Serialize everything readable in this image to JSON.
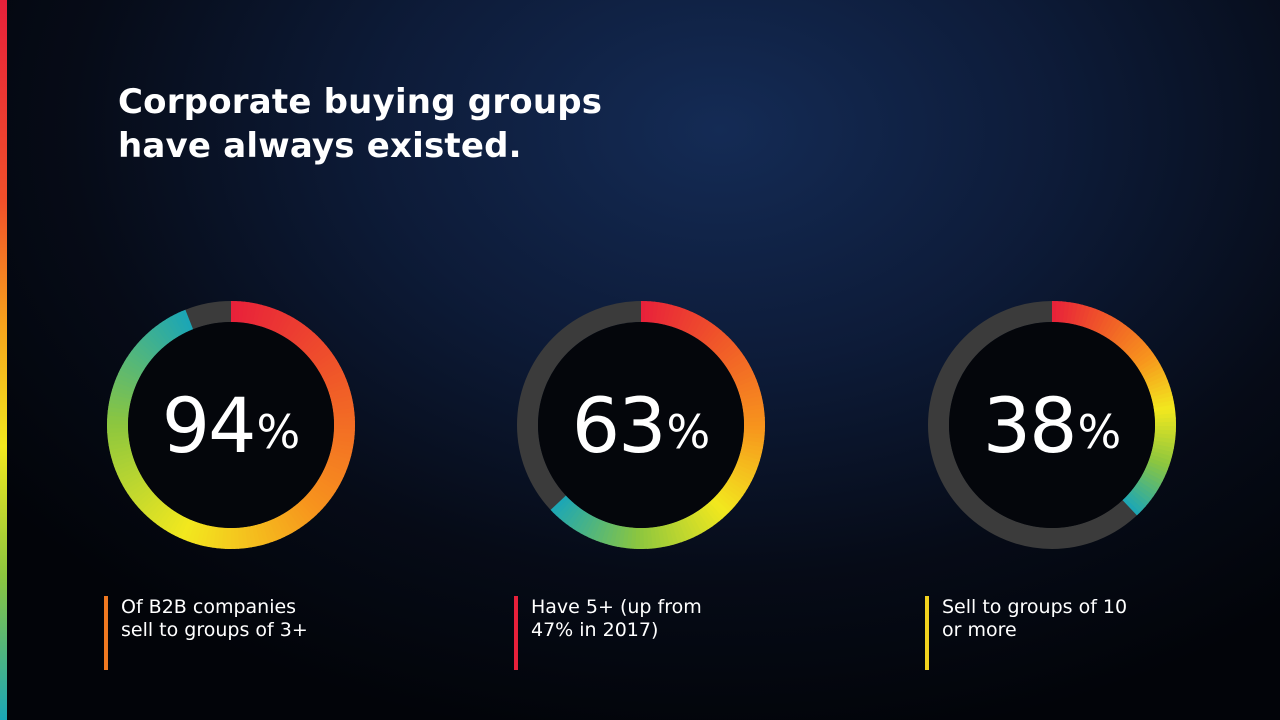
{
  "slide": {
    "title": "Corporate buying groups\nhave always existed."
  },
  "colors": {
    "track": "#3b3b3b",
    "inner": "#04060b",
    "gradient_stops": [
      "#e8203a",
      "#f05a28",
      "#f7941d",
      "#f2e81e",
      "#8cc63f",
      "#1aa6b7"
    ]
  },
  "chart_data": {
    "type": "donut",
    "items": [
      {
        "value": 94,
        "value_label": "94",
        "unit": "%",
        "caption": "Of B2B companies\nsell to groups of 3+",
        "accent": "#f07820"
      },
      {
        "value": 63,
        "value_label": "63",
        "unit": "%",
        "caption": "Have 5+ (up from\n47% in 2017)",
        "accent": "#e8203a"
      },
      {
        "value": 38,
        "value_label": "38",
        "unit": "%",
        "caption": "Sell to groups of 10\nor more",
        "accent": "#f2d21e"
      }
    ]
  }
}
